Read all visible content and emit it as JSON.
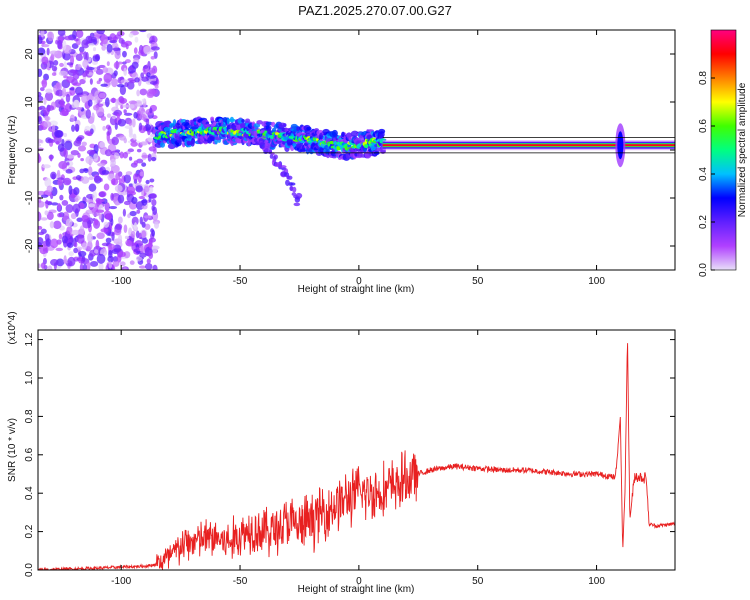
{
  "chart_data": [
    {
      "type": "heatmap",
      "title": "PAZ1.2025.270.07.00.G27",
      "xlabel": "Height of straight line (km)",
      "ylabel": "Frequency (Hz)",
      "xlim": [
        -135,
        133
      ],
      "ylim": [
        -25,
        25
      ],
      "xticks": [
        -100,
        -50,
        0,
        50,
        100
      ],
      "yticks": [
        -20,
        -10,
        0,
        10,
        20
      ],
      "colorbar": {
        "label": "Normalized spectral amplitude",
        "range": [
          0,
          1
        ],
        "ticks": [
          "0.0",
          "0.2",
          "0.4",
          "0.6",
          "0.8"
        ],
        "tick_values": [
          0.0,
          0.2,
          0.4,
          0.6,
          0.8
        ],
        "stops": [
          "#e8e0f8",
          "#b040ff",
          "#6020ff",
          "#0000ff",
          "#00c0ff",
          "#00ff80",
          "#40ff00",
          "#ffff00",
          "#ff8000",
          "#ff0000",
          "#ff0080"
        ]
      },
      "features": {
        "noise_region_km": [
          -135,
          -85
        ],
        "noisy_band": {
          "x": [
            -85,
            -75,
            -65,
            -55,
            -45,
            -35,
            -25,
            -15,
            -10,
            -5,
            0,
            5,
            10
          ],
          "freq": [
            3,
            3.5,
            4,
            4,
            3.5,
            3,
            2.5,
            1.5,
            1,
            0.8,
            1,
            1.5,
            1.5
          ]
        },
        "descending_branch": {
          "x": [
            -45,
            -40,
            -35,
            -30,
            -25
          ],
          "freq": [
            3,
            1,
            -2,
            -6,
            -11
          ]
        },
        "clean_line": {
          "x": [
            10,
            133
          ],
          "freq": 1
        },
        "spike_at_km": 110
      }
    },
    {
      "type": "line",
      "title": "",
      "xlabel": "Height of straight line (km)",
      "ylabel": "SNR (10 * v/v)",
      "ylabel_scale": "(x10^4)",
      "xlim": [
        -135,
        133
      ],
      "ylim": [
        0,
        1.25
      ],
      "xticks": [
        -100,
        -50,
        0,
        50,
        100
      ],
      "yticks": [
        "0.0",
        "0.2",
        "0.4",
        "0.6",
        "0.8",
        "1.0",
        "1.2"
      ],
      "ytick_values": [
        0.0,
        0.2,
        0.4,
        0.6,
        0.8,
        1.0,
        1.2
      ],
      "color": "#e82020",
      "series": [
        {
          "name": "SNR",
          "x": [
            -135,
            -110,
            -90,
            -85,
            -80,
            -75,
            -70,
            -65,
            -60,
            -55,
            -50,
            -45,
            -40,
            -35,
            -30,
            -25,
            -20,
            -15,
            -10,
            -5,
            0,
            5,
            10,
            15,
            20,
            25,
            30,
            35,
            40,
            50,
            60,
            70,
            80,
            90,
            100,
            105,
            108,
            110,
            111,
            112,
            113,
            114,
            116,
            120,
            121,
            122,
            125,
            133
          ],
          "values": [
            0.0,
            0.01,
            0.02,
            0.03,
            0.06,
            0.12,
            0.15,
            0.16,
            0.17,
            0.14,
            0.18,
            0.22,
            0.2,
            0.21,
            0.25,
            0.22,
            0.26,
            0.3,
            0.34,
            0.37,
            0.4,
            0.4,
            0.41,
            0.44,
            0.47,
            0.5,
            0.52,
            0.53,
            0.54,
            0.53,
            0.52,
            0.52,
            0.51,
            0.5,
            0.5,
            0.49,
            0.48,
            0.8,
            0.1,
            0.42,
            1.22,
            0.26,
            0.49,
            0.48,
            0.48,
            0.24,
            0.23,
            0.24
          ]
        }
      ]
    }
  ]
}
